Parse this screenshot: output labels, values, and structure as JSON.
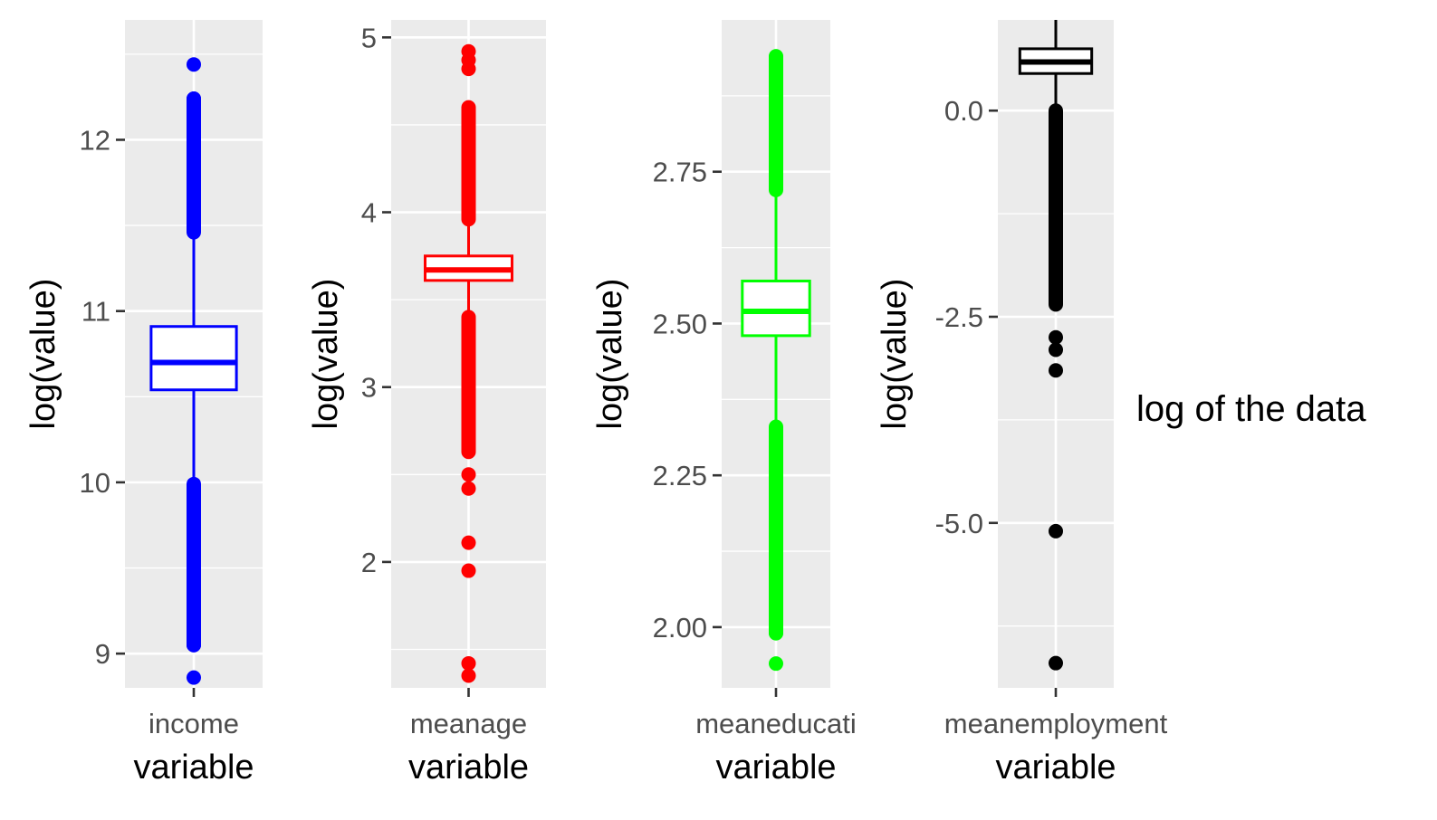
{
  "figure_caption": "log of the data",
  "chart_data": [
    {
      "type": "box",
      "category": "income",
      "xlabel": "variable",
      "ylabel": "log(value)",
      "color": "#0000ff",
      "ylim": [
        8.8,
        12.7
      ],
      "yticks": [
        9,
        10,
        11,
        12
      ],
      "ytick_labels": [
        "9",
        "10",
        "11",
        "12"
      ],
      "box": {
        "lower_whisker": 10.0,
        "q1": 10.54,
        "median": 10.7,
        "q3": 10.91,
        "upper_whisker": 11.45
      },
      "outlier_ranges": [
        [
          9.05,
          9.99
        ],
        [
          11.46,
          12.24
        ]
      ],
      "outliers": [
        8.86,
        9.05,
        12.24,
        12.44
      ]
    },
    {
      "type": "box",
      "category": "meanage",
      "xlabel": "variable",
      "ylabel": "log(value)",
      "color": "#ff0000",
      "ylim": [
        1.28,
        5.1
      ],
      "yticks": [
        2,
        3,
        4,
        5
      ],
      "ytick_labels": [
        "2",
        "3",
        "4",
        "5"
      ],
      "box": {
        "lower_whisker": 3.41,
        "q1": 3.61,
        "median": 3.67,
        "q3": 3.75,
        "upper_whisker": 3.95
      },
      "outlier_ranges": [
        [
          2.63,
          3.4
        ],
        [
          3.96,
          4.6
        ]
      ],
      "outliers": [
        1.35,
        1.42,
        1.95,
        2.11,
        2.42,
        2.5,
        4.82,
        4.87,
        4.92
      ]
    },
    {
      "type": "box",
      "category": "meaneducati",
      "xlabel": "variable",
      "ylabel": "log(value)",
      "color": "#00ff00",
      "ylim": [
        1.9,
        3.0
      ],
      "yticks": [
        2.0,
        2.25,
        2.5,
        2.75
      ],
      "ytick_labels": [
        "2.00",
        "2.25",
        "2.50",
        "2.75"
      ],
      "box": {
        "lower_whisker": 2.33,
        "q1": 2.48,
        "median": 2.52,
        "q3": 2.57,
        "upper_whisker": 2.72
      },
      "outlier_ranges": [
        [
          1.99,
          2.33
        ],
        [
          2.72,
          2.94
        ]
      ],
      "outliers": [
        1.94,
        1.99,
        2.94
      ]
    },
    {
      "type": "box",
      "category": "meanemployment",
      "xlabel": "variable",
      "ylabel": "log(value)",
      "color": "#000000",
      "ylim": [
        -7.0,
        1.1
      ],
      "yticks": [
        -5.0,
        -2.5,
        0.0
      ],
      "ytick_labels": [
        "-5.0",
        "-2.5",
        "0.0"
      ],
      "box": {
        "lower_whisker": 0.05,
        "q1": 0.45,
        "median": 0.59,
        "q3": 0.75,
        "upper_whisker": 1.1
      },
      "outlier_ranges": [
        [
          -2.35,
          0.0
        ]
      ],
      "outliers": [
        -2.75,
        -2.9,
        -3.15,
        -5.1,
        -6.7
      ]
    }
  ]
}
